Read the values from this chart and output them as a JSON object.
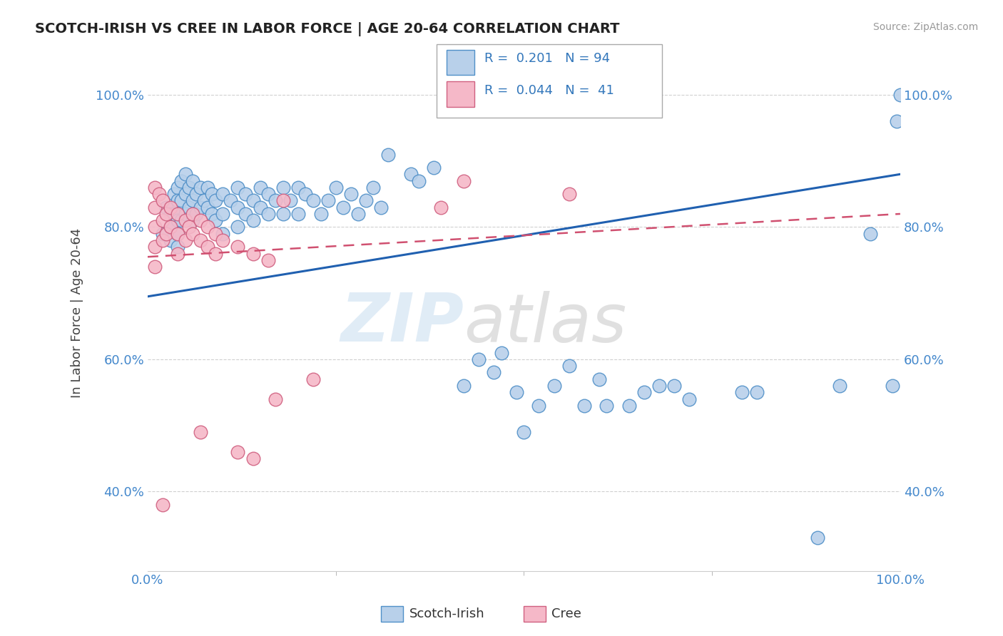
{
  "title": "SCOTCH-IRISH VS CREE IN LABOR FORCE | AGE 20-64 CORRELATION CHART",
  "source_text": "Source: ZipAtlas.com",
  "ylabel": "In Labor Force | Age 20-64",
  "xlim": [
    0.0,
    1.0
  ],
  "ylim": [
    0.28,
    1.06
  ],
  "x_ticks": [
    0.0,
    1.0
  ],
  "x_tick_labels": [
    "0.0%",
    "100.0%"
  ],
  "y_ticks": [
    0.4,
    0.6,
    0.8,
    1.0
  ],
  "y_tick_labels": [
    "40.0%",
    "60.0%",
    "80.0%",
    "100.0%"
  ],
  "blue_color": "#b8d0ea",
  "pink_color": "#f5b8c8",
  "blue_edge_color": "#5090c8",
  "pink_edge_color": "#d06080",
  "blue_line_color": "#2060b0",
  "pink_line_color": "#d05070",
  "watermark_zip": "ZIP",
  "watermark_atlas": "atlas",
  "scotch_irish_points": [
    [
      0.02,
      0.79
    ],
    [
      0.025,
      0.83
    ],
    [
      0.03,
      0.82
    ],
    [
      0.03,
      0.8
    ],
    [
      0.03,
      0.78
    ],
    [
      0.035,
      0.85
    ],
    [
      0.035,
      0.82
    ],
    [
      0.04,
      0.86
    ],
    [
      0.04,
      0.84
    ],
    [
      0.04,
      0.81
    ],
    [
      0.04,
      0.79
    ],
    [
      0.04,
      0.77
    ],
    [
      0.045,
      0.87
    ],
    [
      0.045,
      0.84
    ],
    [
      0.045,
      0.81
    ],
    [
      0.05,
      0.88
    ],
    [
      0.05,
      0.85
    ],
    [
      0.05,
      0.82
    ],
    [
      0.055,
      0.86
    ],
    [
      0.055,
      0.83
    ],
    [
      0.06,
      0.87
    ],
    [
      0.06,
      0.84
    ],
    [
      0.06,
      0.81
    ],
    [
      0.065,
      0.85
    ],
    [
      0.065,
      0.82
    ],
    [
      0.07,
      0.86
    ],
    [
      0.07,
      0.83
    ],
    [
      0.075,
      0.84
    ],
    [
      0.08,
      0.86
    ],
    [
      0.08,
      0.83
    ],
    [
      0.085,
      0.85
    ],
    [
      0.085,
      0.82
    ],
    [
      0.09,
      0.84
    ],
    [
      0.09,
      0.81
    ],
    [
      0.1,
      0.85
    ],
    [
      0.1,
      0.82
    ],
    [
      0.1,
      0.79
    ],
    [
      0.11,
      0.84
    ],
    [
      0.12,
      0.86
    ],
    [
      0.12,
      0.83
    ],
    [
      0.12,
      0.8
    ],
    [
      0.13,
      0.85
    ],
    [
      0.13,
      0.82
    ],
    [
      0.14,
      0.84
    ],
    [
      0.14,
      0.81
    ],
    [
      0.15,
      0.86
    ],
    [
      0.15,
      0.83
    ],
    [
      0.16,
      0.85
    ],
    [
      0.16,
      0.82
    ],
    [
      0.17,
      0.84
    ],
    [
      0.18,
      0.86
    ],
    [
      0.18,
      0.82
    ],
    [
      0.19,
      0.84
    ],
    [
      0.2,
      0.86
    ],
    [
      0.2,
      0.82
    ],
    [
      0.21,
      0.85
    ],
    [
      0.22,
      0.84
    ],
    [
      0.23,
      0.82
    ],
    [
      0.24,
      0.84
    ],
    [
      0.25,
      0.86
    ],
    [
      0.26,
      0.83
    ],
    [
      0.27,
      0.85
    ],
    [
      0.28,
      0.82
    ],
    [
      0.29,
      0.84
    ],
    [
      0.3,
      0.86
    ],
    [
      0.31,
      0.83
    ],
    [
      0.32,
      0.91
    ],
    [
      0.35,
      0.88
    ],
    [
      0.36,
      0.87
    ],
    [
      0.38,
      0.89
    ],
    [
      0.42,
      0.56
    ],
    [
      0.44,
      0.6
    ],
    [
      0.46,
      0.58
    ],
    [
      0.47,
      0.61
    ],
    [
      0.49,
      0.55
    ],
    [
      0.5,
      0.49
    ],
    [
      0.52,
      0.53
    ],
    [
      0.54,
      0.56
    ],
    [
      0.56,
      0.59
    ],
    [
      0.58,
      0.53
    ],
    [
      0.6,
      0.57
    ],
    [
      0.61,
      0.53
    ],
    [
      0.64,
      0.53
    ],
    [
      0.66,
      0.55
    ],
    [
      0.68,
      0.56
    ],
    [
      0.7,
      0.56
    ],
    [
      0.72,
      0.54
    ],
    [
      0.79,
      0.55
    ],
    [
      0.81,
      0.55
    ],
    [
      0.89,
      0.33
    ],
    [
      0.92,
      0.56
    ],
    [
      0.96,
      0.79
    ],
    [
      0.99,
      0.56
    ],
    [
      0.995,
      0.96
    ],
    [
      1.0,
      1.0
    ]
  ],
  "cree_points": [
    [
      0.01,
      0.86
    ],
    [
      0.01,
      0.83
    ],
    [
      0.01,
      0.8
    ],
    [
      0.01,
      0.77
    ],
    [
      0.01,
      0.74
    ],
    [
      0.015,
      0.85
    ],
    [
      0.02,
      0.84
    ],
    [
      0.02,
      0.81
    ],
    [
      0.02,
      0.78
    ],
    [
      0.02,
      0.38
    ],
    [
      0.025,
      0.82
    ],
    [
      0.025,
      0.79
    ],
    [
      0.03,
      0.83
    ],
    [
      0.03,
      0.8
    ],
    [
      0.04,
      0.82
    ],
    [
      0.04,
      0.79
    ],
    [
      0.04,
      0.76
    ],
    [
      0.05,
      0.81
    ],
    [
      0.05,
      0.78
    ],
    [
      0.055,
      0.8
    ],
    [
      0.06,
      0.82
    ],
    [
      0.06,
      0.79
    ],
    [
      0.07,
      0.81
    ],
    [
      0.07,
      0.78
    ],
    [
      0.07,
      0.49
    ],
    [
      0.08,
      0.8
    ],
    [
      0.08,
      0.77
    ],
    [
      0.09,
      0.79
    ],
    [
      0.09,
      0.76
    ],
    [
      0.1,
      0.78
    ],
    [
      0.12,
      0.77
    ],
    [
      0.12,
      0.46
    ],
    [
      0.14,
      0.76
    ],
    [
      0.14,
      0.45
    ],
    [
      0.16,
      0.75
    ],
    [
      0.17,
      0.54
    ],
    [
      0.18,
      0.84
    ],
    [
      0.22,
      0.57
    ],
    [
      0.39,
      0.83
    ],
    [
      0.42,
      0.87
    ],
    [
      0.56,
      0.85
    ]
  ]
}
